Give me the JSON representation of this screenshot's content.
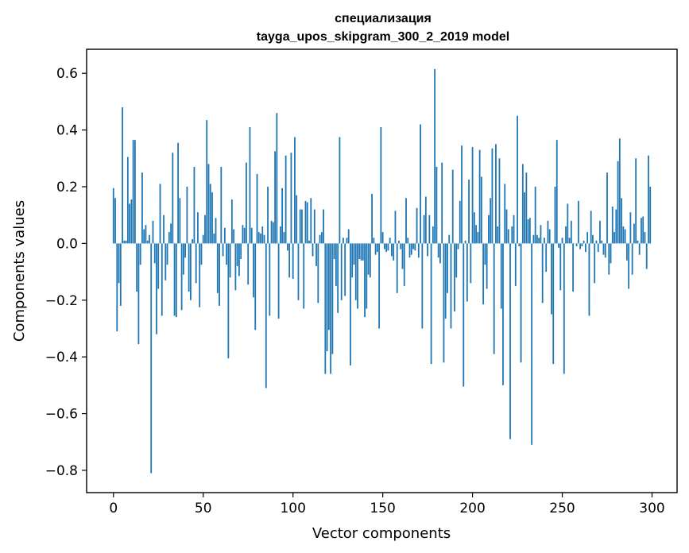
{
  "chart_data": {
    "type": "bar",
    "title": "специализация",
    "subtitle": "tayga_upos_skipgram_300_2_2019 model",
    "xlabel": "Vector components",
    "ylabel": "Components values",
    "xlim": [
      -14.95,
      313.95
    ],
    "ylim": [
      -0.8786,
      0.6847
    ],
    "xticks": [
      0,
      50,
      100,
      150,
      200,
      250,
      300
    ],
    "xtick_labels": [
      "0",
      "50",
      "100",
      "150",
      "200",
      "250",
      "300"
    ],
    "yticks": [
      -0.8,
      -0.6,
      -0.4,
      -0.2,
      0.0,
      0.2,
      0.4,
      0.6
    ],
    "ytick_labels": [
      "−0.8",
      "−0.6",
      "−0.4",
      "−0.2",
      "0.0",
      "0.2",
      "0.4",
      "0.6"
    ],
    "bar_color": "#1f77b4",
    "grid": false,
    "values": [
      0.195,
      0.16,
      -0.31,
      -0.14,
      -0.22,
      0.48,
      0.01,
      0.01,
      0.305,
      0.14,
      0.155,
      0.365,
      0.365,
      -0.17,
      -0.355,
      -0.075,
      0.25,
      0.05,
      0.065,
      0.01,
      0.03,
      -0.81,
      0.08,
      -0.07,
      -0.32,
      -0.16,
      0.21,
      -0.255,
      0.1,
      -0.13,
      -0.075,
      0.04,
      0.07,
      0.32,
      -0.255,
      -0.26,
      0.355,
      0.16,
      -0.235,
      -0.11,
      -0.05,
      0.2,
      -0.17,
      -0.2,
      0.015,
      0.27,
      -0.14,
      0.11,
      -0.225,
      -0.075,
      0.03,
      0.1,
      0.435,
      0.28,
      0.21,
      0.18,
      0.035,
      0.09,
      -0.175,
      -0.22,
      0.27,
      -0.045,
      0.055,
      -0.075,
      -0.405,
      -0.12,
      0.155,
      0.05,
      -0.165,
      -0.08,
      -0.115,
      -0.055,
      0.065,
      0.055,
      0.285,
      -0.145,
      0.41,
      0.055,
      -0.19,
      -0.305,
      0.245,
      0.04,
      0.035,
      0.06,
      0.03,
      -0.51,
      0.2,
      -0.255,
      0.08,
      0.075,
      0.325,
      0.46,
      -0.265,
      0.06,
      0.195,
      0.04,
      0.31,
      -0.025,
      -0.12,
      0.32,
      -0.125,
      0.375,
      0.17,
      -0.2,
      0.12,
      0.12,
      -0.23,
      0.15,
      0.145,
      0.01,
      0.16,
      -0.045,
      0.12,
      -0.08,
      -0.21,
      0.03,
      0.04,
      0.12,
      -0.46,
      -0.38,
      -0.305,
      -0.46,
      -0.39,
      -0.055,
      -0.15,
      -0.245,
      0.375,
      -0.2,
      0.02,
      -0.185,
      0.02,
      0.05,
      -0.43,
      -0.12,
      -0.075,
      -0.2,
      -0.23,
      -0.055,
      -0.06,
      -0.06,
      -0.26,
      -0.23,
      -0.11,
      -0.12,
      0.175,
      0.02,
      -0.04,
      -0.03,
      -0.3,
      0.41,
      0.04,
      -0.02,
      -0.03,
      -0.025,
      0.02,
      -0.045,
      -0.06,
      0.115,
      -0.175,
      0.01,
      -0.02,
      -0.09,
      -0.15,
      0.16,
      0.02,
      -0.05,
      -0.04,
      -0.02,
      -0.025,
      0.125,
      -0.05,
      0.42,
      -0.3,
      0.1,
      0.165,
      -0.045,
      0.1,
      -0.425,
      0.06,
      0.615,
      0.27,
      -0.05,
      -0.07,
      0.285,
      -0.42,
      -0.265,
      -0.175,
      0.03,
      -0.3,
      0.26,
      -0.24,
      -0.12,
      -0.02,
      0.15,
      0.345,
      -0.505,
      0.01,
      -0.205,
      0.225,
      -0.14,
      0.34,
      0.11,
      0.065,
      0.04,
      0.33,
      0.235,
      -0.215,
      -0.075,
      -0.16,
      0.1,
      0.16,
      0.335,
      -0.39,
      0.35,
      0.06,
      0.3,
      -0.23,
      -0.5,
      0.21,
      0.12,
      0.05,
      -0.69,
      0.06,
      0.1,
      -0.15,
      0.45,
      -0.01,
      -0.42,
      0.28,
      0.18,
      0.25,
      0.085,
      0.09,
      -0.71,
      0.03,
      0.2,
      0.03,
      0.02,
      0.065,
      -0.21,
      0.02,
      -0.1,
      0.08,
      0.05,
      -0.25,
      -0.425,
      0.2,
      0.365,
      -0.015,
      -0.165,
      0.02,
      -0.46,
      0.06,
      0.14,
      0.02,
      0.08,
      -0.17,
      0.0,
      -0.01,
      0.15,
      -0.02,
      -0.01,
      0.01,
      -0.03,
      0.04,
      -0.255,
      0.115,
      0.03,
      -0.14,
      0.01,
      -0.03,
      0.08,
      0.01,
      -0.04,
      -0.05,
      0.25,
      -0.11,
      -0.07,
      0.13,
      0.04,
      0.12,
      0.29,
      0.37,
      0.16,
      0.06,
      0.05,
      -0.06,
      -0.16,
      0.11,
      -0.11,
      0.07,
      0.3,
      0.01,
      -0.04,
      0.09,
      0.095,
      0.04,
      -0.09,
      0.31,
      0.2
    ]
  }
}
